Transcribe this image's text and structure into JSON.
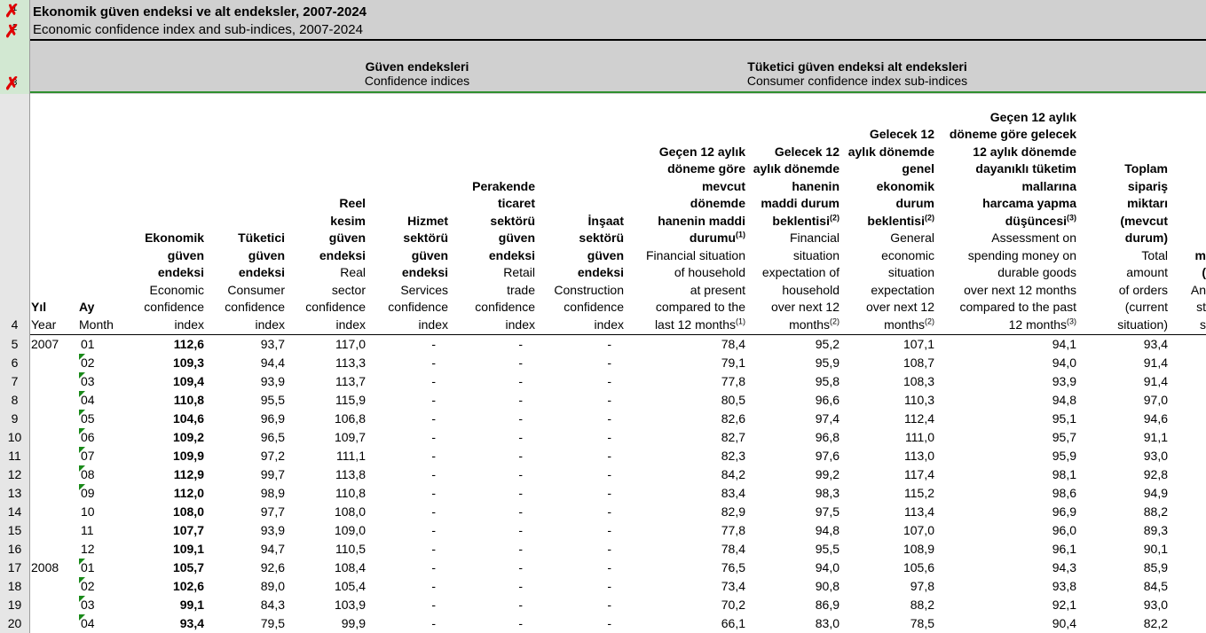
{
  "sheet": {
    "title_tr": "Ekonomik güven endeksi ve alt endeksler, 2007-2024",
    "title_en": "Economic confidence index and sub-indices, 2007-2024",
    "groups": [
      {
        "tr": "Güven endeksleri",
        "en": "Confidence indices"
      },
      {
        "tr": "Tüketici güven endeksi alt endeksleri",
        "en": "Consumer confidence index sub-indices"
      }
    ],
    "header_row_number": "4",
    "header_row_markers": [
      "1",
      "2",
      "3"
    ]
  },
  "columns": {
    "year": {
      "tr": "Yıl",
      "en": "Year"
    },
    "month": {
      "tr": "Ay",
      "en": "Month"
    },
    "econ": {
      "tr": [
        "Ekonomik",
        "güven",
        "endeksi"
      ],
      "en": [
        "Economic",
        "confidence",
        "index"
      ]
    },
    "cons": {
      "tr": [
        "Tüketici",
        "güven",
        "endeksi"
      ],
      "en": [
        "Consumer",
        "confidence",
        "index"
      ]
    },
    "real": {
      "tr": [
        "Reel",
        "kesim",
        "güven",
        "endeksi"
      ],
      "en": [
        "Real",
        "sector",
        "confidence",
        "index"
      ]
    },
    "serv": {
      "tr": [
        "Hizmet",
        "sektörü",
        "güven",
        "endeksi"
      ],
      "en": [
        "Services",
        "confidence",
        "index"
      ]
    },
    "retail": {
      "tr": [
        "Perakende",
        "ticaret",
        "sektörü",
        "güven",
        "endeksi"
      ],
      "en": [
        "Retail",
        "trade",
        "confidence",
        "index"
      ]
    },
    "const": {
      "tr": [
        "İnşaat",
        "sektörü",
        "güven",
        "endeksi"
      ],
      "en": [
        "Construction",
        "confidence",
        "index"
      ]
    },
    "fin": {
      "tr": [
        "Geçen 12 aylık",
        "döneme göre",
        "mevcut",
        "dönemde",
        "hanenin maddi",
        "durumu"
      ],
      "tr_sup": "(1)",
      "en": [
        "Financial situation",
        "of household",
        "at present",
        "compared to the",
        "last 12 months"
      ],
      "en_sup": "(1)"
    },
    "finexp": {
      "tr": [
        "Gelecek 12",
        "aylık dönemde",
        "hanenin",
        "maddi durum",
        "beklentisi"
      ],
      "tr_sup": "(2)",
      "en": [
        "Financial",
        "situation",
        "expectation of",
        "household",
        "over next 12",
        "months"
      ],
      "en_sup": "(2)"
    },
    "gen": {
      "tr": [
        "Gelecek 12",
        "aylık dönemde",
        "genel",
        "ekonomik",
        "durum",
        "beklentisi"
      ],
      "tr_sup": "(2)",
      "en": [
        "General",
        "economic",
        "situation",
        "expectation",
        "over next 12",
        "months"
      ],
      "en_sup": "(2)"
    },
    "dur": {
      "tr": [
        "Geçen 12 aylık",
        "döneme göre gelecek",
        "12 aylık dönemde",
        "dayanıklı tüketim",
        "mallarına",
        "harcama yapma",
        "düşüncesi"
      ],
      "tr_sup": "(3)",
      "en": [
        "Assessment on",
        "spending money on",
        "durable goods",
        "over next 12 months",
        "compared to the past",
        "12 months"
      ],
      "en_sup": "(3)"
    },
    "orders": {
      "tr": [
        "Toplam",
        "sipariş",
        "miktarı",
        "(mevcut",
        "durum)"
      ],
      "en": [
        "Total",
        "amount",
        "of orders",
        "(current",
        "situation)"
      ]
    },
    "partial": {
      "tr": [
        "m",
        "",
        "(",
        ""
      ],
      "en": [
        "An",
        "st",
        "",
        "s"
      ]
    }
  },
  "rows": [
    {
      "n": "5",
      "year": "2007",
      "month": "01",
      "econ": "112,6",
      "cons": "93,7",
      "real": "117,0",
      "serv": "-",
      "retail": "-",
      "const": "-",
      "fin": "78,4",
      "finexp": "95,2",
      "gen": "107,1",
      "dur": "94,1",
      "orders": "93,4",
      "tri": false
    },
    {
      "n": "6",
      "year": "",
      "month": "02",
      "econ": "109,3",
      "cons": "94,4",
      "real": "113,3",
      "serv": "-",
      "retail": "-",
      "const": "-",
      "fin": "79,1",
      "finexp": "95,9",
      "gen": "108,7",
      "dur": "94,0",
      "orders": "91,4",
      "tri": true
    },
    {
      "n": "7",
      "year": "",
      "month": "03",
      "econ": "109,4",
      "cons": "93,9",
      "real": "113,7",
      "serv": "-",
      "retail": "-",
      "const": "-",
      "fin": "77,8",
      "finexp": "95,8",
      "gen": "108,3",
      "dur": "93,9",
      "orders": "91,4",
      "tri": true
    },
    {
      "n": "8",
      "year": "",
      "month": "04",
      "econ": "110,8",
      "cons": "95,5",
      "real": "115,9",
      "serv": "-",
      "retail": "-",
      "const": "-",
      "fin": "80,5",
      "finexp": "96,6",
      "gen": "110,3",
      "dur": "94,8",
      "orders": "97,0",
      "tri": true
    },
    {
      "n": "9",
      "year": "",
      "month": "05",
      "econ": "104,6",
      "cons": "96,9",
      "real": "106,8",
      "serv": "-",
      "retail": "-",
      "const": "-",
      "fin": "82,6",
      "finexp": "97,4",
      "gen": "112,4",
      "dur": "95,1",
      "orders": "94,6",
      "tri": true
    },
    {
      "n": "10",
      "year": "",
      "month": "06",
      "econ": "109,2",
      "cons": "96,5",
      "real": "109,7",
      "serv": "-",
      "retail": "-",
      "const": "-",
      "fin": "82,7",
      "finexp": "96,8",
      "gen": "111,0",
      "dur": "95,7",
      "orders": "91,1",
      "tri": true
    },
    {
      "n": "11",
      "year": "",
      "month": "07",
      "econ": "109,9",
      "cons": "97,2",
      "real": "111,1",
      "serv": "-",
      "retail": "-",
      "const": "-",
      "fin": "82,3",
      "finexp": "97,6",
      "gen": "113,0",
      "dur": "95,9",
      "orders": "93,0",
      "tri": true
    },
    {
      "n": "12",
      "year": "",
      "month": "08",
      "econ": "112,9",
      "cons": "99,7",
      "real": "113,8",
      "serv": "-",
      "retail": "-",
      "const": "-",
      "fin": "84,2",
      "finexp": "99,2",
      "gen": "117,4",
      "dur": "98,1",
      "orders": "92,8",
      "tri": true
    },
    {
      "n": "13",
      "year": "",
      "month": "09",
      "econ": "112,0",
      "cons": "98,9",
      "real": "110,8",
      "serv": "-",
      "retail": "-",
      "const": "-",
      "fin": "83,4",
      "finexp": "98,3",
      "gen": "115,2",
      "dur": "98,6",
      "orders": "94,9",
      "tri": true
    },
    {
      "n": "14",
      "year": "",
      "month": "10",
      "econ": "108,0",
      "cons": "97,7",
      "real": "108,0",
      "serv": "-",
      "retail": "-",
      "const": "-",
      "fin": "82,9",
      "finexp": "97,5",
      "gen": "113,4",
      "dur": "96,9",
      "orders": "88,2",
      "tri": false
    },
    {
      "n": "15",
      "year": "",
      "month": "11",
      "econ": "107,7",
      "cons": "93,9",
      "real": "109,0",
      "serv": "-",
      "retail": "-",
      "const": "-",
      "fin": "77,8",
      "finexp": "94,8",
      "gen": "107,0",
      "dur": "96,0",
      "orders": "89,3",
      "tri": false
    },
    {
      "n": "16",
      "year": "",
      "month": "12",
      "econ": "109,1",
      "cons": "94,7",
      "real": "110,5",
      "serv": "-",
      "retail": "-",
      "const": "-",
      "fin": "78,4",
      "finexp": "95,5",
      "gen": "108,9",
      "dur": "96,1",
      "orders": "90,1",
      "tri": false
    },
    {
      "n": "17",
      "year": "2008",
      "month": "01",
      "econ": "105,7",
      "cons": "92,6",
      "real": "108,4",
      "serv": "-",
      "retail": "-",
      "const": "-",
      "fin": "76,5",
      "finexp": "94,0",
      "gen": "105,6",
      "dur": "94,3",
      "orders": "85,9",
      "tri": true
    },
    {
      "n": "18",
      "year": "",
      "month": "02",
      "econ": "102,6",
      "cons": "89,0",
      "real": "105,4",
      "serv": "-",
      "retail": "-",
      "const": "-",
      "fin": "73,4",
      "finexp": "90,8",
      "gen": "97,8",
      "dur": "93,8",
      "orders": "84,5",
      "tri": true
    },
    {
      "n": "19",
      "year": "",
      "month": "03",
      "econ": "99,1",
      "cons": "84,3",
      "real": "103,9",
      "serv": "-",
      "retail": "-",
      "const": "-",
      "fin": "70,2",
      "finexp": "86,9",
      "gen": "88,2",
      "dur": "92,1",
      "orders": "93,0",
      "tri": true
    },
    {
      "n": "20",
      "year": "",
      "month": "04",
      "econ": "93,4",
      "cons": "79,5",
      "real": "99,9",
      "serv": "-",
      "retail": "-",
      "const": "-",
      "fin": "66,1",
      "finexp": "83,0",
      "gen": "78,5",
      "dur": "90,4",
      "orders": "82,2",
      "tri": true
    }
  ]
}
